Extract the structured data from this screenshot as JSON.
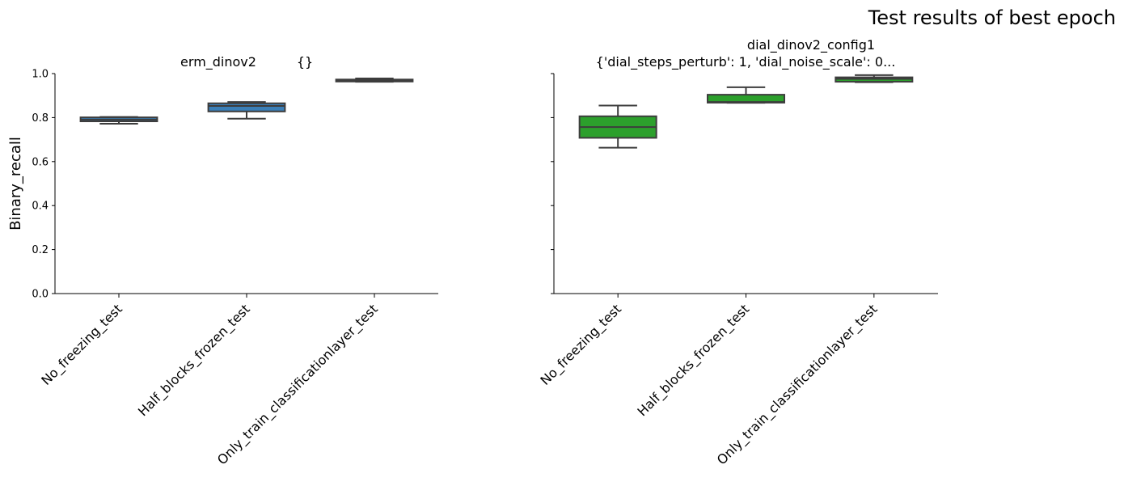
{
  "suptitle": "Test results of best epoch",
  "ylabel": "Binary_recall",
  "chart_data": [
    {
      "type": "box",
      "title_left": "erm_dinov2",
      "title_right": "{}",
      "ylabel": "Binary_recall",
      "ylim": [
        0,
        1.0
      ],
      "yticks": [
        "0.0",
        "0.2",
        "0.4",
        "0.6",
        "0.8",
        "1.0"
      ],
      "categories": [
        "No_freezing_test",
        "Half_blocks_frozen_test",
        "Only_train_classificationlayer_test"
      ],
      "color": "#3a7fb8",
      "boxes": [
        {
          "whislo": 0.772,
          "q1": 0.783,
          "med": 0.791,
          "q3": 0.801,
          "whishi": 0.803
        },
        {
          "whislo": 0.795,
          "q1": 0.828,
          "med": 0.853,
          "q3": 0.865,
          "whishi": 0.871
        },
        {
          "whislo": 0.963,
          "q1": 0.964,
          "med": 0.969,
          "q3": 0.973,
          "whishi": 0.978
        }
      ]
    },
    {
      "type": "box",
      "title_line1": "dial_dinov2_config1",
      "title_line2": "{'dial_steps_perturb': 1, 'dial_noise_scale': 0...",
      "ylim": [
        0,
        1.0
      ],
      "categories": [
        "No_freezing_test",
        "Half_blocks_frozen_test",
        "Only_train_classificationlayer_test"
      ],
      "color": "#2ca02c",
      "boxes": [
        {
          "whislo": 0.663,
          "q1": 0.708,
          "med": 0.757,
          "q3": 0.806,
          "whishi": 0.855
        },
        {
          "whislo": 0.867,
          "q1": 0.868,
          "med": 0.871,
          "q3": 0.904,
          "whishi": 0.938
        },
        {
          "whislo": 0.961,
          "q1": 0.963,
          "med": 0.976,
          "q3": 0.983,
          "whishi": 0.993
        }
      ]
    }
  ]
}
